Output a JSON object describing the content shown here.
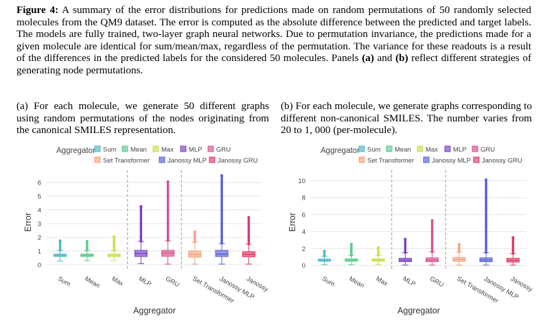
{
  "caption": {
    "label": "Figure 4:",
    "text_1": " A summary of the error distributions for predictions made on random permutations of 50 randomly selected molecules from the ",
    "dataset": "QM9",
    "text_2": " dataset. The error is computed as the absolute difference between the predicted and target labels. The models are fully trained, two-layer graph neural networks. Due to permutation invariance, the predictions made for a given molecule are identical for sum/mean/max, regardless of the permutation. The variance for these readouts is a result of the differences in the predicted labels for the considered 50 molecules. Panels ",
    "panel_a_ref": "(a)",
    "text_3": " and ",
    "panel_b_ref": "(b)",
    "text_4": " reflect different strategies of generating node permutations."
  },
  "subcaptions": {
    "a": {
      "label": "(a)",
      "text_1": " For each molecule, we generate 50 different graphs using random permutations of the nodes originating from the canonical ",
      "smiles": "SMILES",
      "text_2": " representation."
    },
    "b": {
      "label": "(b)",
      "text_1": " For each molecule, we generate graphs corresponding to different non-canonical ",
      "smiles": "SMILES",
      "text_2": ". The number varies from 20 to 1, 000 (per-molecule)."
    }
  },
  "chart_data": [
    {
      "type": "box",
      "legend_title": "Aggregator",
      "xlabel": "Aggregator",
      "ylabel": "Error",
      "yticks": [
        0,
        1,
        2,
        3,
        4,
        5,
        6
      ],
      "ylim": [
        -0.3,
        6.5
      ],
      "categories": [
        "Sum",
        "Mean",
        "Max",
        "MLP",
        "GRU",
        "Set Transformer",
        "Janossy MLP",
        "Janossy GRU"
      ],
      "colors": [
        "#4db8c8",
        "#58c98e",
        "#c7e04a",
        "#7b3fc4",
        "#d8508e",
        "#f2a37e",
        "#5561d6",
        "#e03a64"
      ],
      "separators_after": [
        2,
        4
      ],
      "series": [
        {
          "name": "Sum",
          "q1": 0.6,
          "median": 0.68,
          "q3": 0.78,
          "wlo": 0.28,
          "whi": 1.05,
          "outlier_max": 1.75
        },
        {
          "name": "Mean",
          "q1": 0.6,
          "median": 0.68,
          "q3": 0.78,
          "wlo": 0.3,
          "whi": 1.05,
          "outlier_max": 1.7
        },
        {
          "name": "Max",
          "q1": 0.6,
          "median": 0.68,
          "q3": 0.78,
          "wlo": 0.3,
          "whi": 1.05,
          "outlier_max": 2.05
        },
        {
          "name": "MLP",
          "q1": 0.6,
          "median": 0.82,
          "q3": 1.05,
          "wlo": 0.08,
          "whi": 1.7,
          "outlier_max": 4.25
        },
        {
          "name": "GRU",
          "q1": 0.62,
          "median": 0.85,
          "q3": 1.05,
          "wlo": 0.05,
          "whi": 1.75,
          "outlier_max": 6.05
        },
        {
          "name": "Set Transformer",
          "q1": 0.55,
          "median": 0.75,
          "q3": 1.0,
          "wlo": 0.05,
          "whi": 1.65,
          "outlier_max": 2.4
        },
        {
          "name": "Janossy MLP",
          "q1": 0.6,
          "median": 0.78,
          "q3": 1.05,
          "wlo": 0.05,
          "whi": 1.55,
          "outlier_max": 6.5
        },
        {
          "name": "Janossy GRU",
          "q1": 0.58,
          "median": 0.75,
          "q3": 0.95,
          "wlo": 0.05,
          "whi": 1.5,
          "outlier_max": 3.45
        }
      ]
    },
    {
      "type": "box",
      "legend_title": "Aggregator",
      "xlabel": "Aggregator",
      "ylabel": "Error",
      "yticks": [
        0,
        2,
        4,
        6,
        8,
        10
      ],
      "ylim": [
        -0.4,
        10.6
      ],
      "categories": [
        "Sum",
        "Mean",
        "Max",
        "MLP",
        "GRU",
        "Set Transformer",
        "Janossy MLP",
        "Janossy GRU"
      ],
      "colors": [
        "#4db8c8",
        "#58c98e",
        "#c7e04a",
        "#7b3fc4",
        "#d8508e",
        "#f2a37e",
        "#5561d6",
        "#e03a64"
      ],
      "separators_after": [
        2,
        4
      ],
      "series": [
        {
          "name": "Sum",
          "q1": 0.5,
          "median": 0.62,
          "q3": 0.75,
          "wlo": 0.1,
          "whi": 1.1,
          "outlier_max": 1.7
        },
        {
          "name": "Mean",
          "q1": 0.5,
          "median": 0.62,
          "q3": 0.78,
          "wlo": 0.1,
          "whi": 1.2,
          "outlier_max": 2.5
        },
        {
          "name": "Max",
          "q1": 0.5,
          "median": 0.62,
          "q3": 0.78,
          "wlo": 0.1,
          "whi": 1.2,
          "outlier_max": 2.1
        },
        {
          "name": "MLP",
          "q1": 0.45,
          "median": 0.62,
          "q3": 0.85,
          "wlo": 0.05,
          "whi": 1.5,
          "outlier_max": 3.1
        },
        {
          "name": "GRU",
          "q1": 0.45,
          "median": 0.65,
          "q3": 0.9,
          "wlo": 0.05,
          "whi": 1.6,
          "outlier_max": 5.3
        },
        {
          "name": "Set Transformer",
          "q1": 0.5,
          "median": 0.7,
          "q3": 0.95,
          "wlo": 0.05,
          "whi": 1.6,
          "outlier_max": 2.5
        },
        {
          "name": "Janossy MLP",
          "q1": 0.45,
          "median": 0.65,
          "q3": 0.9,
          "wlo": 0.05,
          "whi": 1.5,
          "outlier_max": 10.1
        },
        {
          "name": "Janossy GRU",
          "q1": 0.4,
          "median": 0.6,
          "q3": 0.85,
          "wlo": 0.05,
          "whi": 1.4,
          "outlier_max": 3.3
        }
      ]
    }
  ]
}
